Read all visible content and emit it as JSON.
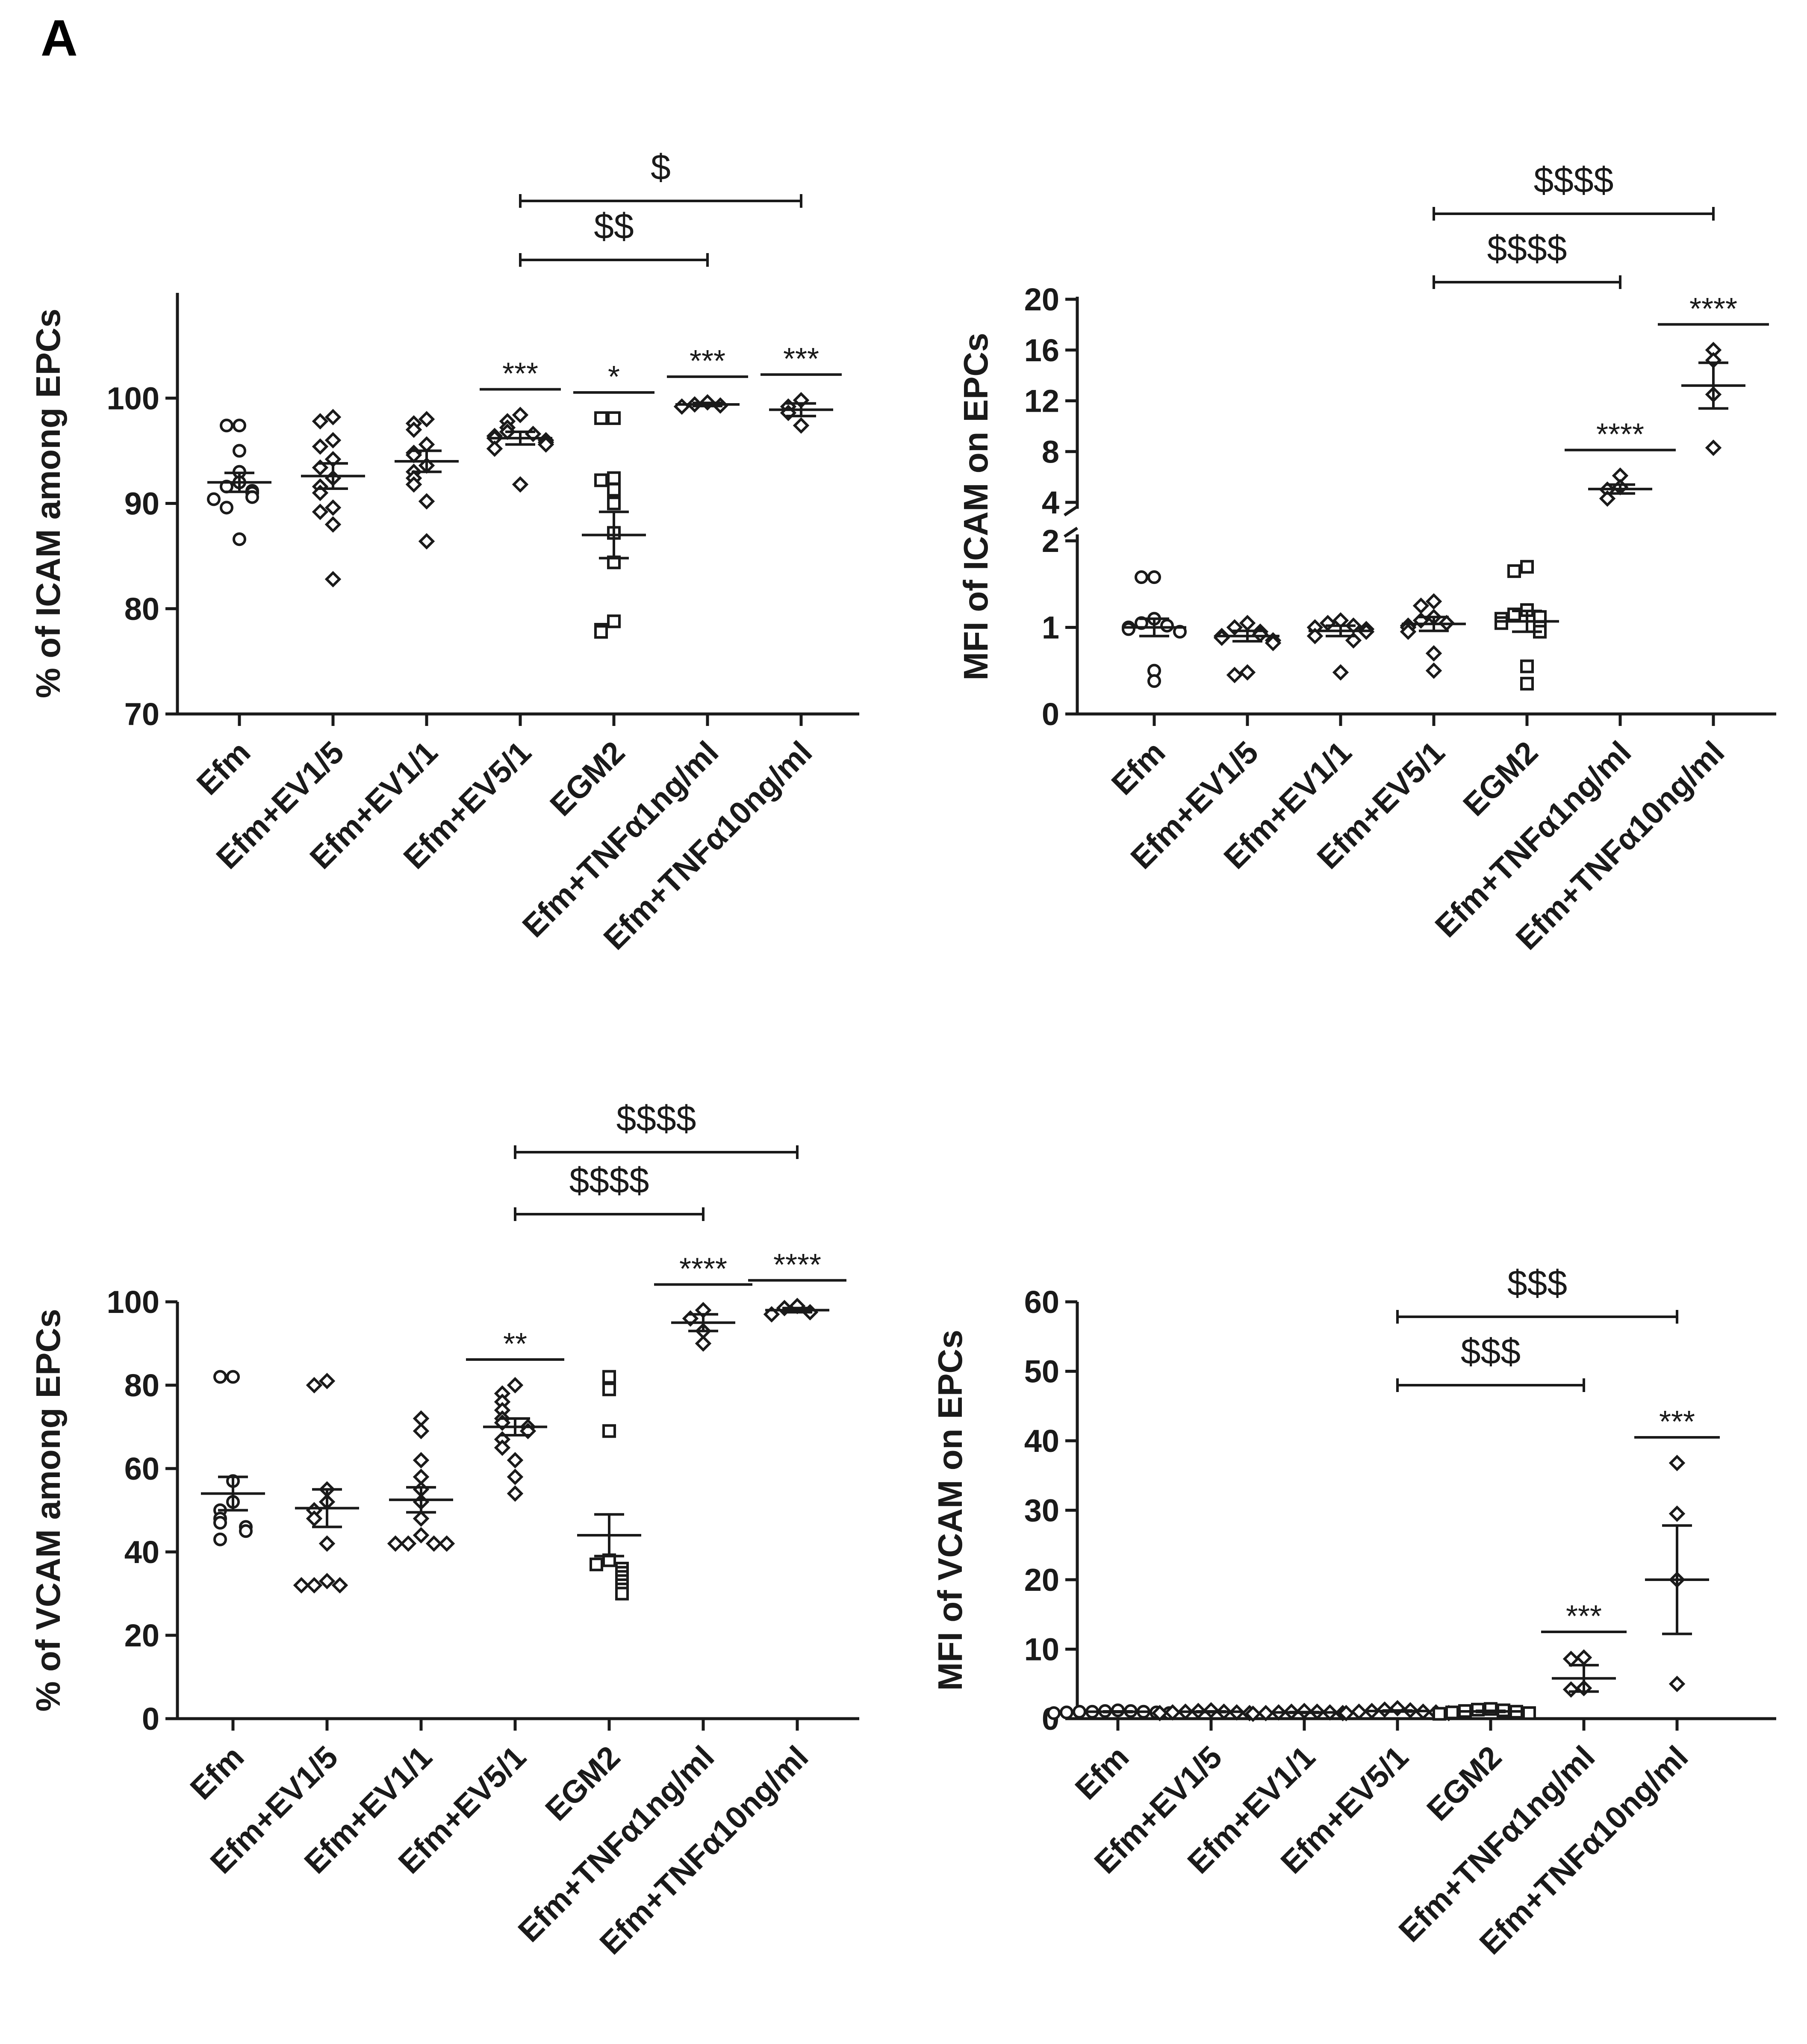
{
  "figure": {
    "panel_letter": "A"
  },
  "chart_data": [
    {
      "id": "icam-pct",
      "type": "scatter",
      "ylabel": "% of ICAM among EPCs",
      "ylim": [
        70,
        110
      ],
      "yticks": [
        70,
        80,
        90,
        100
      ],
      "categories": [
        "Efm",
        "Efm+EV1/5",
        "Efm+EV1/1",
        "Efm+EV5/1",
        "EGM2",
        "Efm+TNFα1ng/ml",
        "Efm+TNFα10ng/ml"
      ],
      "markers": [
        "circle",
        "diamond",
        "diamond",
        "diamond",
        "square",
        "diamond",
        "diamond"
      ],
      "points": [
        [
          97.4,
          97.4,
          95.0,
          93.0,
          92.0,
          91.6,
          91.2,
          91.0,
          90.6,
          90.4,
          89.6,
          86.6
        ],
        [
          98.2,
          97.8,
          96.0,
          95.4,
          94.2,
          93.4,
          92.4,
          91.6,
          91.0,
          89.6,
          89.2,
          88.0,
          82.8
        ],
        [
          98.0,
          97.6,
          97.0,
          95.6,
          94.8,
          94.6,
          93.6,
          93.0,
          92.4,
          91.8,
          90.2,
          86.4
        ],
        [
          98.4,
          97.8,
          97.2,
          96.8,
          96.6,
          96.4,
          96.2,
          96.0,
          95.8,
          95.6,
          95.2,
          91.8
        ],
        [
          98.1,
          98.1,
          92.4,
          92.2,
          91.3,
          90.0,
          87.2,
          84.4,
          78.8,
          78.0,
          77.8
        ],
        [
          99.6,
          99.4,
          99.3,
          99.2
        ],
        [
          99.8,
          99.2,
          98.6,
          97.4
        ]
      ],
      "mean": [
        92.0,
        92.6,
        94.0,
        96.2,
        87.0,
        99.4,
        98.9
      ],
      "sem": [
        0.9,
        1.2,
        1.0,
        0.6,
        2.2,
        0.15,
        0.6
      ],
      "significance": [
        "",
        "",
        "",
        "***",
        "*",
        "***",
        "***"
      ],
      "brackets": [
        {
          "from": 3,
          "to": 5,
          "label": "$$"
        },
        {
          "from": 3,
          "to": 6,
          "label": "$"
        }
      ]
    },
    {
      "id": "icam-mfi",
      "type": "scatter",
      "ylabel": "MFI of ICAM on EPCs",
      "axis_break": true,
      "lower_range": [
        0,
        2
      ],
      "lower_ticks": [
        0,
        1,
        2
      ],
      "upper_range": [
        4,
        20
      ],
      "upper_ticks": [
        4,
        8,
        12,
        16,
        20
      ],
      "categories": [
        "Efm",
        "Efm+EV1/5",
        "Efm+EV1/1",
        "Efm+EV5/1",
        "EGM2",
        "Efm+TNFα1ng/ml",
        "Efm+TNFα10ng/ml"
      ],
      "markers": [
        "circle",
        "diamond",
        "diamond",
        "diamond",
        "square",
        "diamond",
        "diamond"
      ],
      "points": [
        [
          1.58,
          1.58,
          1.1,
          1.05,
          1.02,
          1.0,
          0.98,
          0.95,
          0.5,
          0.38
        ],
        [
          1.05,
          1.0,
          0.95,
          0.92,
          0.9,
          0.88,
          0.85,
          0.82,
          0.48,
          0.45
        ],
        [
          1.08,
          1.05,
          1.02,
          1.0,
          0.98,
          0.95,
          0.9,
          0.85,
          0.48
        ],
        [
          1.3,
          1.25,
          1.12,
          1.08,
          1.05,
          1.02,
          1.0,
          0.95,
          0.7,
          0.5
        ],
        [
          1.7,
          1.65,
          1.2,
          1.15,
          1.12,
          1.1,
          1.05,
          1.0,
          0.95,
          0.55,
          0.35
        ],
        [
          6.1,
          5.2,
          5.0,
          4.3
        ],
        [
          16.0,
          15.2,
          12.5,
          8.3
        ]
      ],
      "mean": [
        1.0,
        0.9,
        0.96,
        1.04,
        1.07,
        5.05,
        13.2
      ],
      "sem": [
        0.1,
        0.06,
        0.06,
        0.08,
        0.12,
        0.35,
        1.8
      ],
      "significance": [
        "",
        "",
        "",
        "",
        "",
        "****",
        "****"
      ],
      "brackets": [
        {
          "from": 3,
          "to": 5,
          "label": "$$$$"
        },
        {
          "from": 3,
          "to": 6,
          "label": "$$$$"
        }
      ]
    },
    {
      "id": "vcam-pct",
      "type": "scatter",
      "ylabel": "% of VCAM among EPCs",
      "ylim": [
        0,
        100
      ],
      "yticks": [
        0,
        20,
        40,
        60,
        80,
        100
      ],
      "categories": [
        "Efm",
        "Efm+EV1/5",
        "Efm+EV1/1",
        "Efm+EV5/1",
        "EGM2",
        "Efm+TNFα1ng/ml",
        "Efm+TNFα10ng/ml"
      ],
      "markers": [
        "circle",
        "diamond",
        "diamond",
        "diamond",
        "square",
        "diamond",
        "diamond"
      ],
      "points": [
        [
          82,
          82,
          57,
          52,
          50,
          48,
          47,
          46,
          45,
          43
        ],
        [
          81,
          80,
          55,
          52,
          50,
          48,
          42,
          33,
          32,
          32,
          32
        ],
        [
          72,
          69,
          62,
          58,
          55,
          52,
          48,
          44,
          42,
          42,
          42,
          42
        ],
        [
          80,
          78,
          76,
          74,
          72,
          71,
          70,
          69,
          67,
          65,
          62,
          58,
          54
        ],
        [
          82,
          79,
          69,
          38,
          37,
          36,
          35,
          34,
          33,
          32,
          31,
          30
        ],
        [
          98,
          96,
          93,
          90
        ],
        [
          99,
          98.5,
          97.5,
          97
        ]
      ],
      "mean": [
        54,
        50.5,
        52.5,
        70,
        44,
        95,
        98
      ],
      "sem": [
        4,
        4.5,
        3,
        2,
        5,
        2,
        0.5
      ],
      "significance": [
        "",
        "",
        "",
        "**",
        "",
        "****",
        "****"
      ],
      "brackets": [
        {
          "from": 3,
          "to": 5,
          "label": "$$$$"
        },
        {
          "from": 3,
          "to": 6,
          "label": "$$$$"
        }
      ]
    },
    {
      "id": "vcam-mfi",
      "type": "scatter",
      "ylabel": "MFI of VCAM on EPCs",
      "ylim": [
        0,
        60
      ],
      "yticks": [
        0,
        10,
        20,
        30,
        40,
        50,
        60
      ],
      "categories": [
        "Efm",
        "Efm+EV1/5",
        "Efm+EV1/1",
        "Efm+EV5/1",
        "EGM2",
        "Efm+TNFα1ng/ml",
        "Efm+TNFα10ng/ml"
      ],
      "markers": [
        "circle",
        "diamond",
        "diamond",
        "diamond",
        "square",
        "diamond",
        "diamond"
      ],
      "points": [
        [
          1.2,
          1.1,
          1.1,
          1.0,
          1.0,
          1.0,
          0.9,
          0.9,
          0.8,
          0.8
        ],
        [
          1.2,
          1.1,
          1.0,
          1.0,
          0.9,
          0.9,
          0.8,
          0.8
        ],
        [
          1.1,
          1.0,
          1.0,
          0.9,
          0.9,
          0.8,
          0.8,
          0.7
        ],
        [
          1.5,
          1.3,
          1.2,
          1.1,
          1.0,
          1.0,
          0.9,
          0.8,
          0.8
        ],
        [
          1.4,
          1.3,
          1.2,
          1.1,
          1.0,
          0.9,
          0.8,
          0.7
        ],
        [
          8.8,
          8.6,
          4.4,
          4.2
        ],
        [
          36.8,
          29.5,
          20.0,
          5.0
        ]
      ],
      "mean": [
        1.0,
        1.0,
        0.9,
        1.1,
        1.05,
        5.8,
        20.0
      ],
      "sem": [
        0.05,
        0.05,
        0.05,
        0.08,
        0.08,
        1.9,
        7.8
      ],
      "significance": [
        "",
        "",
        "",
        "",
        "",
        "***",
        "***"
      ],
      "brackets": [
        {
          "from": 3,
          "to": 5,
          "label": "$$$"
        },
        {
          "from": 3,
          "to": 6,
          "label": "$$$"
        }
      ]
    }
  ]
}
